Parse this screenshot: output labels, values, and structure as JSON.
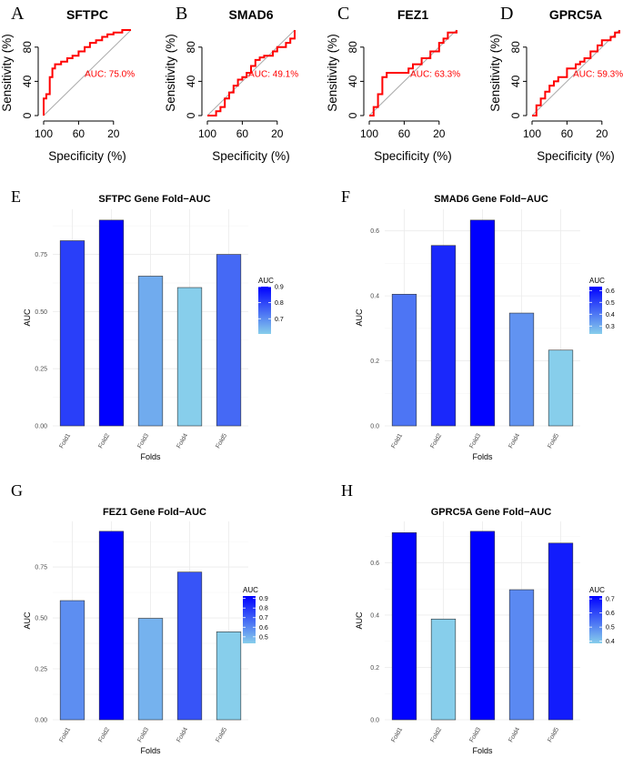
{
  "chart_data": [
    {
      "panel": "A",
      "type": "line",
      "subtype": "roc",
      "title": "SFTPC",
      "xlabel": "Specificity (%)",
      "ylabel": "Sensitivity (%)",
      "xlim": [
        100,
        0
      ],
      "ylim": [
        0,
        100
      ],
      "xticks": [
        100,
        60,
        20
      ],
      "yticks": [
        0,
        40,
        80
      ],
      "auc_label": "AUC: 75.0%",
      "line_color": "#ff0000",
      "specificity": [
        100,
        100,
        97,
        97,
        93,
        93,
        90,
        90,
        87,
        87,
        80,
        80,
        73,
        73,
        67,
        67,
        60,
        60,
        53,
        53,
        47,
        47,
        40,
        40,
        33,
        33,
        27,
        27,
        20,
        20,
        10,
        10,
        0
      ],
      "sensitivity": [
        0,
        20,
        20,
        25,
        25,
        45,
        45,
        55,
        55,
        60,
        60,
        63,
        63,
        67,
        67,
        70,
        70,
        75,
        75,
        80,
        80,
        85,
        85,
        88,
        88,
        92,
        92,
        95,
        95,
        97,
        97,
        100,
        100
      ]
    },
    {
      "panel": "B",
      "type": "line",
      "subtype": "roc",
      "title": "SMAD6",
      "xlabel": "Specificity (%)",
      "ylabel": "Sensitivity (%)",
      "xlim": [
        100,
        0
      ],
      "ylim": [
        0,
        100
      ],
      "xticks": [
        100,
        60,
        20
      ],
      "yticks": [
        0,
        40,
        80
      ],
      "auc_label": "AUC: 49.1%",
      "line_color": "#ff0000",
      "specificity": [
        100,
        90,
        90,
        85,
        85,
        80,
        80,
        75,
        75,
        70,
        70,
        65,
        65,
        60,
        60,
        55,
        55,
        50,
        50,
        45,
        45,
        40,
        40,
        35,
        35,
        25,
        25,
        20,
        20,
        10,
        10,
        5,
        5,
        0,
        0
      ],
      "sensitivity": [
        0,
        0,
        5,
        5,
        10,
        10,
        20,
        20,
        27,
        27,
        35,
        35,
        42,
        42,
        45,
        45,
        50,
        50,
        58,
        58,
        65,
        65,
        68,
        68,
        70,
        70,
        75,
        75,
        80,
        80,
        85,
        85,
        90,
        90,
        100
      ]
    },
    {
      "panel": "C",
      "type": "line",
      "subtype": "roc",
      "title": "FEZ1",
      "xlabel": "Specificity (%)",
      "ylabel": "Sensitivity (%)",
      "xlim": [
        100,
        0
      ],
      "ylim": [
        0,
        100
      ],
      "xticks": [
        100,
        60,
        20
      ],
      "yticks": [
        0,
        40,
        80
      ],
      "auc_label": "AUC: 63.3%",
      "line_color": "#ff0000",
      "specificity": [
        100,
        95,
        95,
        90,
        90,
        85,
        85,
        80,
        80,
        55,
        55,
        50,
        50,
        40,
        40,
        30,
        30,
        20,
        20,
        15,
        15,
        10,
        10,
        0,
        0
      ],
      "sensitivity": [
        0,
        0,
        10,
        10,
        25,
        25,
        45,
        45,
        50,
        50,
        55,
        55,
        60,
        60,
        67,
        67,
        75,
        75,
        85,
        85,
        90,
        90,
        97,
        97,
        100
      ]
    },
    {
      "panel": "D",
      "type": "line",
      "subtype": "roc",
      "title": "GPRC5A",
      "xlabel": "Specificity (%)",
      "ylabel": "Sensitivity (%)",
      "xlim": [
        100,
        0
      ],
      "ylim": [
        0,
        100
      ],
      "xticks": [
        100,
        60,
        20
      ],
      "yticks": [
        0,
        40,
        80
      ],
      "auc_label": "AUC: 59.3%",
      "line_color": "#ff0000",
      "specificity": [
        100,
        95,
        95,
        90,
        90,
        85,
        85,
        80,
        80,
        75,
        75,
        70,
        70,
        60,
        60,
        50,
        50,
        45,
        45,
        40,
        40,
        33,
        33,
        25,
        25,
        20,
        20,
        10,
        10,
        5,
        5,
        0,
        0
      ],
      "sensitivity": [
        0,
        0,
        12,
        12,
        20,
        20,
        28,
        28,
        35,
        35,
        40,
        40,
        45,
        45,
        55,
        55,
        60,
        60,
        63,
        63,
        67,
        67,
        75,
        75,
        82,
        82,
        88,
        88,
        92,
        92,
        97,
        97,
        100
      ]
    },
    {
      "panel": "E",
      "type": "bar",
      "title": "SFTPC Gene Fold−AUC",
      "xlabel": "Folds",
      "ylabel": "AUC",
      "categories": [
        "Fold1",
        "Fold2",
        "Fold3",
        "Fold4",
        "Fold5"
      ],
      "values": [
        0.81,
        0.9,
        0.655,
        0.605,
        0.75
      ],
      "ylim": [
        0,
        0.9
      ],
      "yticks": [
        0.0,
        0.25,
        0.5,
        0.75
      ],
      "ytick_labels": [
        "0.00",
        "0.25",
        "0.50",
        "0.75"
      ],
      "legend": {
        "title": "AUC",
        "range": [
          0.605,
          0.9
        ],
        "ticks": [
          0.7,
          0.8,
          0.9
        ],
        "tick_labels": [
          "0.7",
          "0.8",
          "0.9"
        ],
        "low_color": "#87ceeb",
        "high_color": "#0000ff",
        "position": "right"
      }
    },
    {
      "panel": "F",
      "type": "bar",
      "title": "SMAD6 Gene Fold−AUC",
      "xlabel": "Folds",
      "ylabel": "AUC",
      "categories": [
        "Fold1",
        "Fold2",
        "Fold3",
        "Fold4",
        "Fold5"
      ],
      "values": [
        0.405,
        0.555,
        0.633,
        0.347,
        0.233
      ],
      "ylim": [
        0,
        0.633
      ],
      "yticks": [
        0.0,
        0.2,
        0.4,
        0.6
      ],
      "ytick_labels": [
        "0.0",
        "0.2",
        "0.4",
        "0.6"
      ],
      "legend": {
        "title": "AUC",
        "range": [
          0.233,
          0.633
        ],
        "ticks": [
          0.3,
          0.4,
          0.5,
          0.6
        ],
        "tick_labels": [
          "0.3",
          "0.4",
          "0.5",
          "0.6"
        ],
        "low_color": "#87ceeb",
        "high_color": "#0000ff",
        "position": "right"
      }
    },
    {
      "panel": "G",
      "type": "bar",
      "title": "FEZ1 Gene Fold−AUC",
      "xlabel": "Folds",
      "ylabel": "AUC",
      "categories": [
        "Fold1",
        "Fold2",
        "Fold3",
        "Fold4",
        "Fold5"
      ],
      "values": [
        0.585,
        0.925,
        0.498,
        0.725,
        0.432
      ],
      "ylim": [
        0,
        0.925
      ],
      "yticks": [
        0.0,
        0.25,
        0.5,
        0.75
      ],
      "ytick_labels": [
        "0.00",
        "0.25",
        "0.50",
        "0.75"
      ],
      "legend": {
        "title": "AUC",
        "range": [
          0.432,
          0.925
        ],
        "ticks": [
          0.5,
          0.6,
          0.7,
          0.8,
          0.9
        ],
        "tick_labels": [
          "0.5",
          "0.6",
          "0.7",
          "0.8",
          "0.9"
        ],
        "low_color": "#87ceeb",
        "high_color": "#0000ff",
        "position": "right"
      }
    },
    {
      "panel": "H",
      "type": "bar",
      "title": "GPRC5A Gene Fold−AUC",
      "xlabel": "Folds",
      "ylabel": "AUC",
      "categories": [
        "Fold1",
        "Fold2",
        "Fold3",
        "Fold4",
        "Fold5"
      ],
      "values": [
        0.715,
        0.385,
        0.72,
        0.497,
        0.675
      ],
      "ylim": [
        0,
        0.72
      ],
      "yticks": [
        0.0,
        0.2,
        0.4,
        0.6
      ],
      "ytick_labels": [
        "0.0",
        "0.2",
        "0.4",
        "0.6"
      ],
      "legend": {
        "title": "AUC",
        "range": [
          0.385,
          0.72
        ],
        "ticks": [
          0.4,
          0.5,
          0.6,
          0.7
        ],
        "tick_labels": [
          "0.4",
          "0.5",
          "0.6",
          "0.7"
        ],
        "low_color": "#87ceeb",
        "high_color": "#0000ff",
        "position": "right"
      }
    }
  ]
}
